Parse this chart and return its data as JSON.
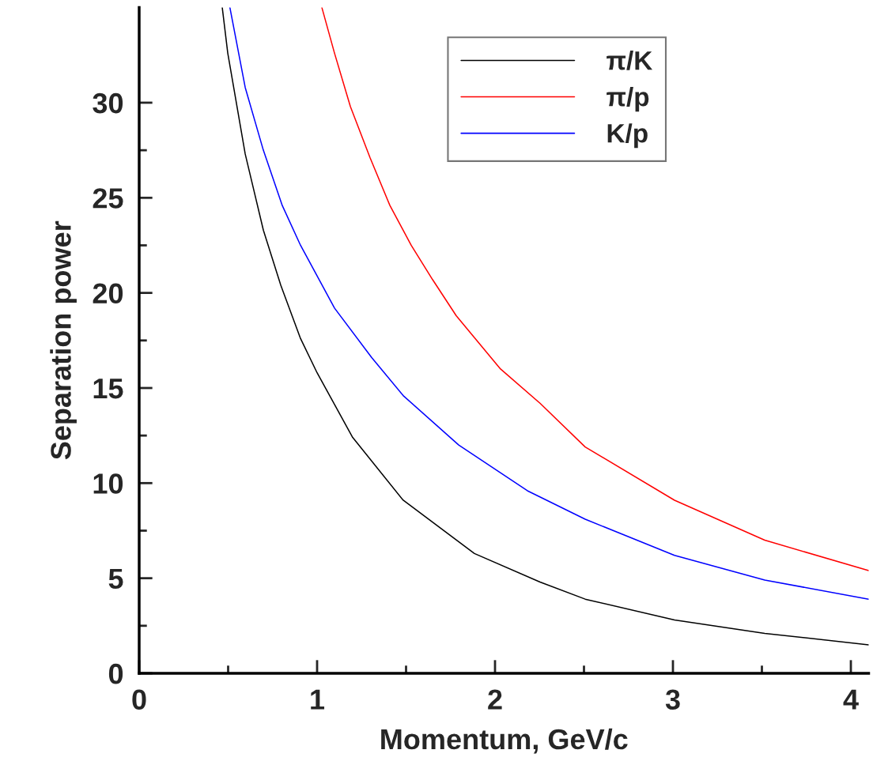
{
  "chart_data": {
    "type": "line",
    "xlabel": "Momentum, GeV/c",
    "ylabel": "Separation power",
    "xlim": [
      0,
      4.1
    ],
    "ylim": [
      0,
      35
    ],
    "xticks": [
      0,
      {
        "value": 0.5,
        "label": null
      },
      1,
      {
        "value": 1.5,
        "label": null
      },
      2,
      {
        "value": 2.5,
        "label": null
      },
      3,
      {
        "value": 3.5,
        "label": null
      },
      4
    ],
    "yticks": [
      0,
      {
        "value": 2.5,
        "label": null
      },
      5,
      {
        "value": 7.5,
        "label": null
      },
      10,
      {
        "value": 12.5,
        "label": null
      },
      15,
      {
        "value": 17.5,
        "label": null
      },
      20,
      {
        "value": 22.5,
        "label": null
      },
      25,
      {
        "value": 27.5,
        "label": null
      },
      30
    ],
    "grid": false,
    "legend": "top right",
    "marker": "none",
    "line_style": "solid",
    "series": [
      {
        "name": "π/K",
        "color": "#000000",
        "x": [
          0.467,
          0.498,
          0.596,
          0.698,
          0.796,
          0.907,
          1.0,
          1.2,
          1.484,
          1.884,
          2.253,
          2.507,
          3.009,
          3.516,
          4.1
        ],
        "values": [
          35,
          32.6,
          27.3,
          23.3,
          20.4,
          17.6,
          15.8,
          12.4,
          9.1,
          6.3,
          4.8,
          3.9,
          2.8,
          2.1,
          1.5
        ]
      },
      {
        "name": "π/p",
        "color": "#ff0000",
        "x": [
          1.027,
          1.098,
          1.187,
          1.298,
          1.409,
          1.529,
          1.649,
          1.782,
          2.031,
          2.253,
          2.507,
          3.009,
          3.516,
          4.1
        ],
        "values": [
          35,
          32.6,
          29.8,
          27.1,
          24.6,
          22.5,
          20.7,
          18.8,
          16.0,
          14.2,
          11.9,
          9.1,
          7.0,
          5.4
        ]
      },
      {
        "name": "K/p",
        "color": "#0000ff",
        "x": [
          0.51,
          0.596,
          0.698,
          0.804,
          0.907,
          1.098,
          1.307,
          1.484,
          1.796,
          2.182,
          2.507,
          3.009,
          3.516,
          4.1
        ],
        "values": [
          35,
          30.8,
          27.5,
          24.6,
          22.5,
          19.2,
          16.6,
          14.6,
          12.0,
          9.6,
          8.1,
          6.2,
          4.9,
          3.9
        ]
      }
    ]
  }
}
